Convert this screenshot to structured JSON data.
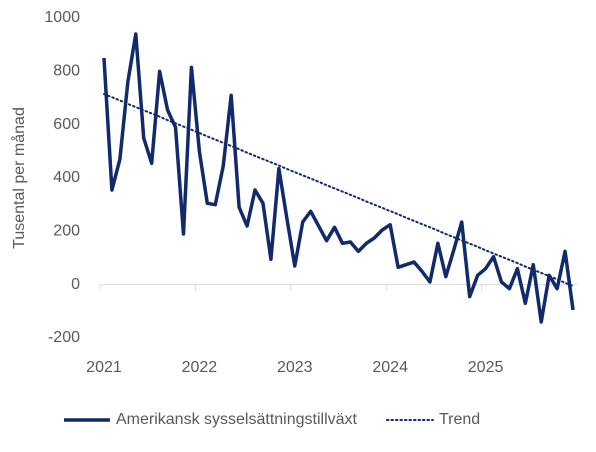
{
  "chart_data": {
    "type": "line",
    "y_label": "Tusental per månad",
    "categories": [
      "2021",
      null,
      null,
      null,
      null,
      null,
      null,
      null,
      null,
      null,
      null,
      null,
      "2022",
      null,
      null,
      null,
      null,
      null,
      null,
      null,
      null,
      null,
      null,
      null,
      "2023",
      null,
      null,
      null,
      null,
      null,
      null,
      null,
      null,
      null,
      null,
      null,
      "2024",
      null,
      null,
      null,
      null,
      null,
      null,
      null,
      null,
      null,
      null,
      null,
      "2025",
      null,
      null,
      null,
      null,
      null,
      null,
      null,
      null,
      null,
      null,
      null
    ],
    "series": [
      {
        "name": "Amerikansk sysselsättningstillväxt",
        "color": "#102a6b",
        "style": "solid",
        "values": [
          850,
          355,
          470,
          760,
          940,
          550,
          455,
          800,
          655,
          590,
          190,
          815,
          500,
          305,
          300,
          445,
          710,
          290,
          220,
          355,
          305,
          95,
          435,
          250,
          70,
          235,
          275,
          220,
          165,
          215,
          155,
          160,
          125,
          155,
          175,
          205,
          225,
          65,
          75,
          85,
          50,
          10,
          155,
          30,
          130,
          235,
          -45,
          35,
          60,
          105,
          10,
          -15,
          60,
          -70,
          75,
          -140,
          35,
          -15,
          125,
          -95
        ]
      },
      {
        "name": "Trend",
        "color": "#102a6b",
        "style": "dotted",
        "values": [
          715,
          703,
          691,
          678,
          666,
          654,
          642,
          630,
          617,
          605,
          593,
          581,
          569,
          556,
          544,
          532,
          520,
          508,
          495,
          483,
          471,
          459,
          447,
          434,
          422,
          410,
          398,
          386,
          373,
          361,
          349,
          337,
          325,
          312,
          300,
          288,
          276,
          264,
          251,
          239,
          227,
          215,
          203,
          190,
          178,
          166,
          154,
          142,
          129,
          117,
          105,
          93,
          81,
          68,
          56,
          44,
          32,
          20,
          7,
          -5
        ]
      }
    ],
    "ylim": [
      -200,
      1000
    ],
    "yticks": [
      -200,
      0,
      200,
      400,
      600,
      800,
      1000
    ],
    "grid": false,
    "legend": "bottom"
  }
}
